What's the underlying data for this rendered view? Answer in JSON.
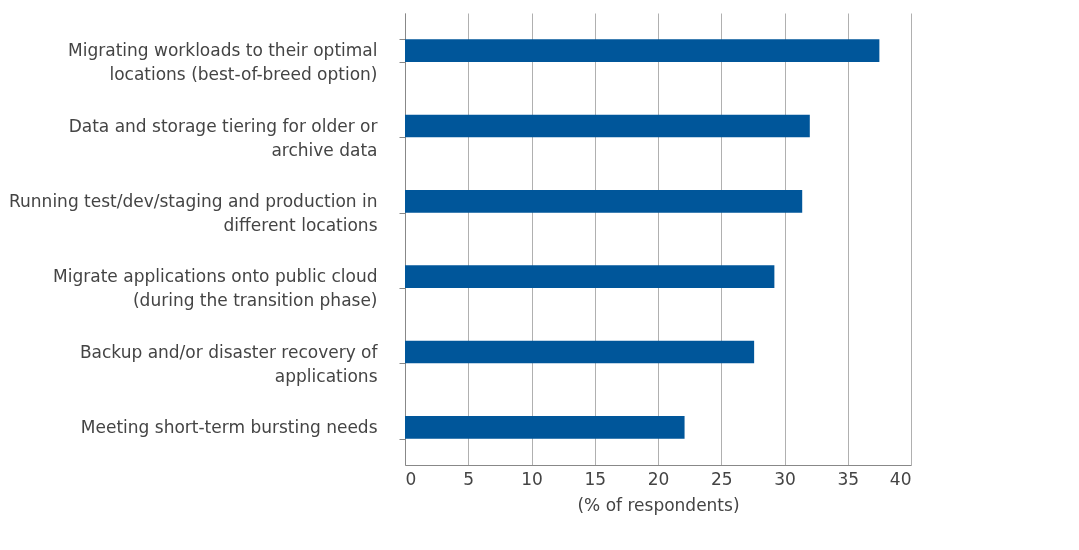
{
  "chart_data": {
    "type": "bar",
    "orientation": "horizontal",
    "categories": [
      "Migrating workloads to their optimal locations (best-of-breed option)",
      "Data and storage tiering for older or archive data",
      "Running test/dev/staging and production in different locations",
      "Migrate applications onto public cloud (during the transition phase)",
      "Backup and/or disaster recovery of applications",
      "Meeting short-term bursting needs"
    ],
    "values": [
      37.5,
      32.0,
      31.4,
      29.2,
      27.6,
      22.1
    ],
    "color": "#00569a",
    "xlabel": "(% of respondents)",
    "xlim": [
      0,
      40
    ],
    "xticks": [
      0,
      5,
      10,
      15,
      20,
      25,
      30,
      35,
      40
    ],
    "grid": "x"
  }
}
